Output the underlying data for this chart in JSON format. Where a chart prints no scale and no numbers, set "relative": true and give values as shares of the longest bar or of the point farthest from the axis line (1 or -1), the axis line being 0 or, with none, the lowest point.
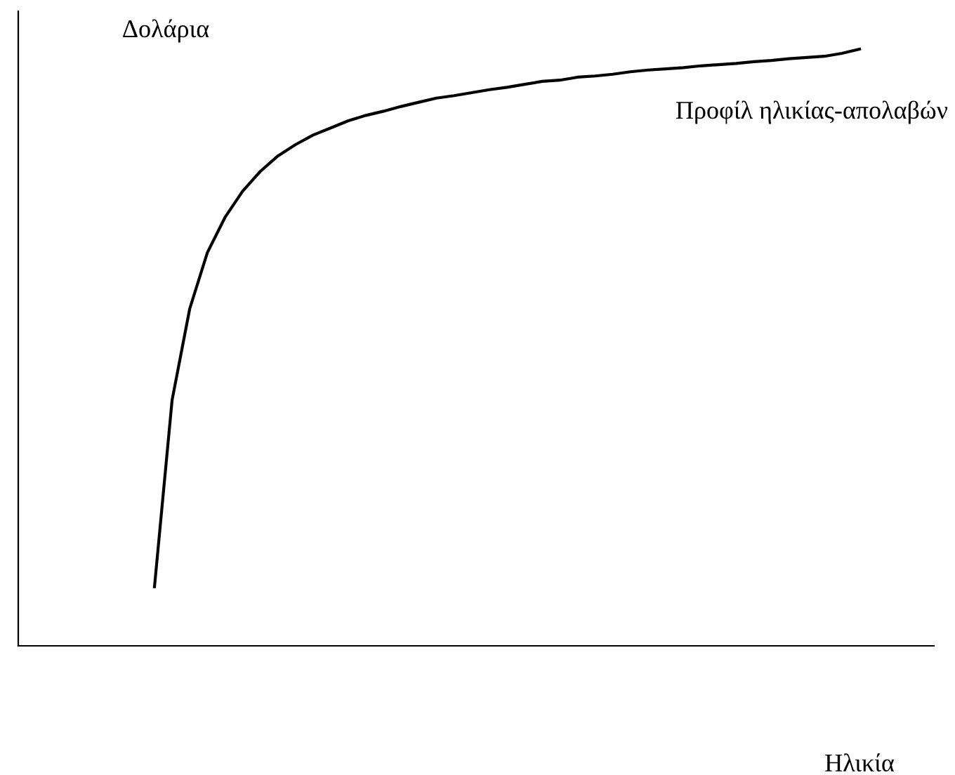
{
  "chart_data": {
    "type": "line",
    "relative": true,
    "xlabel": "Ηλικία",
    "ylabel": "Δολάρια",
    "categories": [
      null,
      null,
      null,
      null,
      null,
      null,
      null,
      null,
      null,
      null,
      null,
      null,
      null,
      null,
      null,
      null,
      null,
      null,
      null,
      null,
      null,
      null,
      null,
      null,
      null,
      null,
      null,
      null,
      null,
      null,
      null,
      null,
      null,
      null,
      null,
      null,
      null,
      null,
      null,
      null,
      null
    ],
    "series": [
      {
        "name": "Προφίλ ηλικίας-απολαβών",
        "color": "#000000",
        "values": [
          0.099,
          0.412,
          0.565,
          0.659,
          0.718,
          0.762,
          0.795,
          0.821,
          0.84,
          0.856,
          0.868,
          0.88,
          0.889,
          0.896,
          0.904,
          0.911,
          0.918,
          0.922,
          0.927,
          0.932,
          0.936,
          0.941,
          0.946,
          0.948,
          0.953,
          0.955,
          0.958,
          0.962,
          0.965,
          0.967,
          0.969,
          0.972,
          0.974,
          0.976,
          0.979,
          0.981,
          0.984,
          0.986,
          0.988,
          0.993,
          1.0
        ]
      }
    ],
    "legend": false,
    "marker": "none",
    "line_style": "solid"
  }
}
